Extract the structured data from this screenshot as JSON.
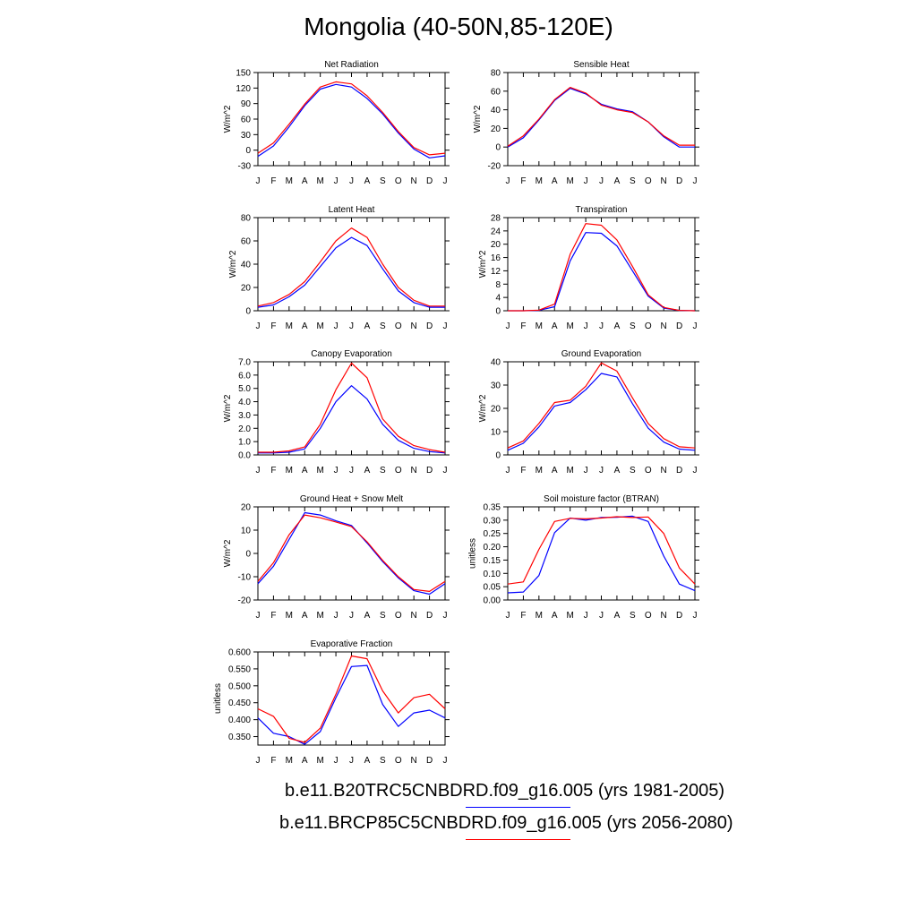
{
  "figure_title": "Mongolia (40-50N,85-120E)",
  "colors": {
    "run1": "#0000ff",
    "run2": "#ff0000",
    "axis": "#000000"
  },
  "legend": [
    {
      "label": "b.e11.B20TRC5CNBDRD.f09_g16.005 (yrs 1981-2005)",
      "color": "#0000ff"
    },
    {
      "label": "b.e11.BRCP85C5CNBDRD.f09_g16.005 (yrs 2056-2080)",
      "color": "#ff0000"
    }
  ],
  "chart_data": [
    {
      "type": "line",
      "title": "Net Radiation",
      "ylabel": "W/m^2",
      "x": [
        "J",
        "F",
        "M",
        "A",
        "M",
        "J",
        "J",
        "A",
        "S",
        "O",
        "N",
        "D",
        "J"
      ],
      "ylim": [
        -30,
        150
      ],
      "yticks": [
        -30,
        0,
        30,
        60,
        90,
        120,
        150
      ],
      "ytick_labels": [
        "-30",
        "0",
        "30",
        "60",
        "90",
        "120",
        "150"
      ],
      "series": [
        {
          "name": "b.e11.B20TRC5CNBDRD.f09_g16.005 (yrs 1981-2005)",
          "color": "#0000ff",
          "values": [
            -12,
            8,
            45,
            86,
            118,
            127,
            122,
            100,
            70,
            33,
            2,
            -15,
            -11
          ]
        },
        {
          "name": "b.e11.BRCP85C5CNBDRD.f09_g16.005 (yrs 2056-2080)",
          "color": "#ff0000",
          "values": [
            -6,
            14,
            50,
            89,
            122,
            132,
            128,
            105,
            73,
            36,
            5,
            -9,
            -6
          ]
        }
      ]
    },
    {
      "type": "line",
      "title": "Sensible Heat",
      "ylabel": "W/m^2",
      "x": [
        "J",
        "F",
        "M",
        "A",
        "M",
        "J",
        "J",
        "A",
        "S",
        "O",
        "N",
        "D",
        "J"
      ],
      "ylim": [
        -20,
        80
      ],
      "yticks": [
        -20,
        0,
        20,
        40,
        60,
        80
      ],
      "ytick_labels": [
        "-20",
        "0",
        "20",
        "40",
        "60",
        "80"
      ],
      "series": [
        {
          "name": "b.e11.B20TRC5CNBDRD.f09_g16.005 (yrs 1981-2005)",
          "color": "#0000ff",
          "values": [
            0,
            10,
            29,
            50,
            63,
            57,
            46,
            41,
            38,
            27,
            11,
            0,
            0
          ]
        },
        {
          "name": "b.e11.BRCP85C5CNBDRD.f09_g16.005 (yrs 2056-2080)",
          "color": "#ff0000",
          "values": [
            1,
            12,
            30,
            51,
            64,
            58,
            45,
            40,
            37,
            27,
            12,
            2,
            2
          ]
        }
      ]
    },
    {
      "type": "line",
      "title": "Latent Heat",
      "ylabel": "W/m^2",
      "x": [
        "J",
        "F",
        "M",
        "A",
        "M",
        "J",
        "J",
        "A",
        "S",
        "O",
        "N",
        "D",
        "J"
      ],
      "ylim": [
        0,
        80
      ],
      "yticks": [
        0,
        20,
        40,
        60,
        80
      ],
      "ytick_labels": [
        "0",
        "20",
        "40",
        "60",
        "80"
      ],
      "series": [
        {
          "name": "b.e11.B20TRC5CNBDRD.f09_g16.005 (yrs 1981-2005)",
          "color": "#0000ff",
          "values": [
            3,
            5,
            12,
            22,
            38,
            54,
            63,
            56,
            36,
            17,
            7,
            3,
            3
          ]
        },
        {
          "name": "b.e11.BRCP85C5CNBDRD.f09_g16.005 (yrs 2056-2080)",
          "color": "#ff0000",
          "values": [
            4,
            7,
            14,
            25,
            42,
            60,
            71,
            63,
            40,
            20,
            9,
            4,
            4
          ]
        }
      ]
    },
    {
      "type": "line",
      "title": "Transpiration",
      "ylabel": "W/m^2",
      "x": [
        "J",
        "F",
        "M",
        "A",
        "M",
        "J",
        "J",
        "A",
        "S",
        "O",
        "N",
        "D",
        "J"
      ],
      "ylim": [
        0,
        28
      ],
      "yticks": [
        0,
        4,
        8,
        12,
        16,
        20,
        24,
        28
      ],
      "ytick_labels": [
        "0",
        "4",
        "8",
        "12",
        "16",
        "20",
        "24",
        "28"
      ],
      "series": [
        {
          "name": "b.e11.B20TRC5CNBDRD.f09_g16.005 (yrs 1981-2005)",
          "color": "#0000ff",
          "values": [
            0,
            0,
            0.1,
            1.2,
            15,
            23.5,
            23.3,
            19.5,
            12,
            4.4,
            0.8,
            0.1,
            0
          ]
        },
        {
          "name": "b.e11.BRCP85C5CNBDRD.f09_g16.005 (yrs 2056-2080)",
          "color": "#ff0000",
          "values": [
            0,
            0,
            0.2,
            2,
            17,
            26.2,
            25.7,
            21.3,
            13.3,
            4.8,
            1,
            0.1,
            0
          ]
        }
      ]
    },
    {
      "type": "line",
      "title": "Canopy Evaporation",
      "ylabel": "W/m^2",
      "x": [
        "J",
        "F",
        "M",
        "A",
        "M",
        "J",
        "J",
        "A",
        "S",
        "O",
        "N",
        "D",
        "J"
      ],
      "ylim": [
        0,
        7
      ],
      "yticks": [
        0,
        1,
        2,
        3,
        4,
        5,
        6,
        7
      ],
      "ytick_labels": [
        "0.0",
        "1.0",
        "2.0",
        "3.0",
        "4.0",
        "5.0",
        "6.0",
        "7.0"
      ],
      "series": [
        {
          "name": "b.e11.B20TRC5CNBDRD.f09_g16.005 (yrs 1981-2005)",
          "color": "#0000ff",
          "values": [
            0.15,
            0.15,
            0.2,
            0.45,
            2.0,
            4.0,
            5.2,
            4.2,
            2.3,
            1.1,
            0.5,
            0.25,
            0.15
          ]
        },
        {
          "name": "b.e11.BRCP85C5CNBDRD.f09_g16.005 (yrs 2056-2080)",
          "color": "#ff0000",
          "values": [
            0.2,
            0.2,
            0.3,
            0.6,
            2.3,
            4.9,
            6.9,
            5.8,
            2.7,
            1.4,
            0.7,
            0.4,
            0.2
          ]
        }
      ]
    },
    {
      "type": "line",
      "title": "Ground Evaporation",
      "ylabel": "W/m^2",
      "x": [
        "J",
        "F",
        "M",
        "A",
        "M",
        "J",
        "J",
        "A",
        "S",
        "O",
        "N",
        "D",
        "J"
      ],
      "ylim": [
        0,
        40
      ],
      "yticks": [
        0,
        10,
        20,
        30,
        40
      ],
      "ytick_labels": [
        "0",
        "10",
        "20",
        "30",
        "40"
      ],
      "series": [
        {
          "name": "b.e11.B20TRC5CNBDRD.f09_g16.005 (yrs 1981-2005)",
          "color": "#0000ff",
          "values": [
            2,
            5,
            12,
            21,
            22.5,
            28,
            35,
            33.5,
            22,
            11.5,
            5.5,
            2.5,
            2
          ]
        },
        {
          "name": "b.e11.BRCP85C5CNBDRD.f09_g16.005 (yrs 2056-2080)",
          "color": "#ff0000",
          "values": [
            3,
            6,
            13.5,
            22.5,
            23.5,
            29.5,
            39.5,
            36,
            24.5,
            13.5,
            7,
            3.5,
            3
          ]
        }
      ]
    },
    {
      "type": "line",
      "title": "Ground Heat + Snow Melt",
      "ylabel": "W/m^2",
      "x": [
        "J",
        "F",
        "M",
        "A",
        "M",
        "J",
        "J",
        "A",
        "S",
        "O",
        "N",
        "D",
        "J"
      ],
      "ylim": [
        -20,
        20
      ],
      "yticks": [
        -20,
        -10,
        0,
        10,
        20
      ],
      "ytick_labels": [
        "-20",
        "-10",
        "0",
        "10",
        "20"
      ],
      "series": [
        {
          "name": "b.e11.B20TRC5CNBDRD.f09_g16.005 (yrs 1981-2005)",
          "color": "#0000ff",
          "values": [
            -13,
            -5.5,
            6,
            17.5,
            16.5,
            14,
            12,
            4.5,
            -3.5,
            -10.5,
            -16,
            -17.5,
            -13
          ]
        },
        {
          "name": "b.e11.BRCP85C5CNBDRD.f09_g16.005 (yrs 2056-2080)",
          "color": "#ff0000",
          "values": [
            -12,
            -4,
            8,
            16.5,
            15.3,
            13.5,
            11.5,
            5,
            -3,
            -10,
            -15.5,
            -16.3,
            -12
          ]
        }
      ]
    },
    {
      "type": "line",
      "title": "Soil moisture factor (BTRAN)",
      "ylabel": "unitless",
      "x": [
        "J",
        "F",
        "M",
        "A",
        "M",
        "J",
        "J",
        "A",
        "S",
        "O",
        "N",
        "D",
        "J"
      ],
      "ylim": [
        0,
        0.35
      ],
      "yticks": [
        0,
        0.05,
        0.1,
        0.15,
        0.2,
        0.25,
        0.3,
        0.35
      ],
      "ytick_labels": [
        "0.00",
        "0.05",
        "0.10",
        "0.15",
        "0.20",
        "0.25",
        "0.30",
        "0.35"
      ],
      "series": [
        {
          "name": "b.e11.B20TRC5CNBDRD.f09_g16.005 (yrs 1981-2005)",
          "color": "#0000ff",
          "values": [
            0.027,
            0.03,
            0.092,
            0.253,
            0.308,
            0.3,
            0.31,
            0.311,
            0.315,
            0.295,
            0.165,
            0.06,
            0.035
          ]
        },
        {
          "name": "b.e11.BRCP85C5CNBDRD.f09_g16.005 (yrs 2056-2080)",
          "color": "#ff0000",
          "values": [
            0.06,
            0.068,
            0.19,
            0.295,
            0.307,
            0.305,
            0.308,
            0.313,
            0.31,
            0.312,
            0.25,
            0.12,
            0.06
          ]
        }
      ]
    },
    {
      "type": "line",
      "title": "Evaporative Fraction",
      "ylabel": "unitless",
      "x": [
        "J",
        "F",
        "M",
        "A",
        "M",
        "J",
        "J",
        "A",
        "S",
        "O",
        "N",
        "D",
        "J"
      ],
      "ylim": [
        0.325,
        0.6
      ],
      "yticks": [
        0.35,
        0.4,
        0.45,
        0.5,
        0.55,
        0.6
      ],
      "ytick_labels": [
        "0.350",
        "0.400",
        "0.450",
        "0.500",
        "0.550",
        "0.600"
      ],
      "series": [
        {
          "name": "b.e11.B20TRC5CNBDRD.f09_g16.005 (yrs 1981-2005)",
          "color": "#0000ff",
          "values": [
            0.405,
            0.36,
            0.35,
            0.327,
            0.365,
            0.465,
            0.557,
            0.56,
            0.445,
            0.38,
            0.42,
            0.428,
            0.405
          ]
        },
        {
          "name": "b.e11.BRCP85C5CNBDRD.f09_g16.005 (yrs 2056-2080)",
          "color": "#ff0000",
          "values": [
            0.432,
            0.41,
            0.345,
            0.333,
            0.375,
            0.475,
            0.588,
            0.58,
            0.485,
            0.42,
            0.465,
            0.475,
            0.432
          ]
        }
      ]
    }
  ]
}
